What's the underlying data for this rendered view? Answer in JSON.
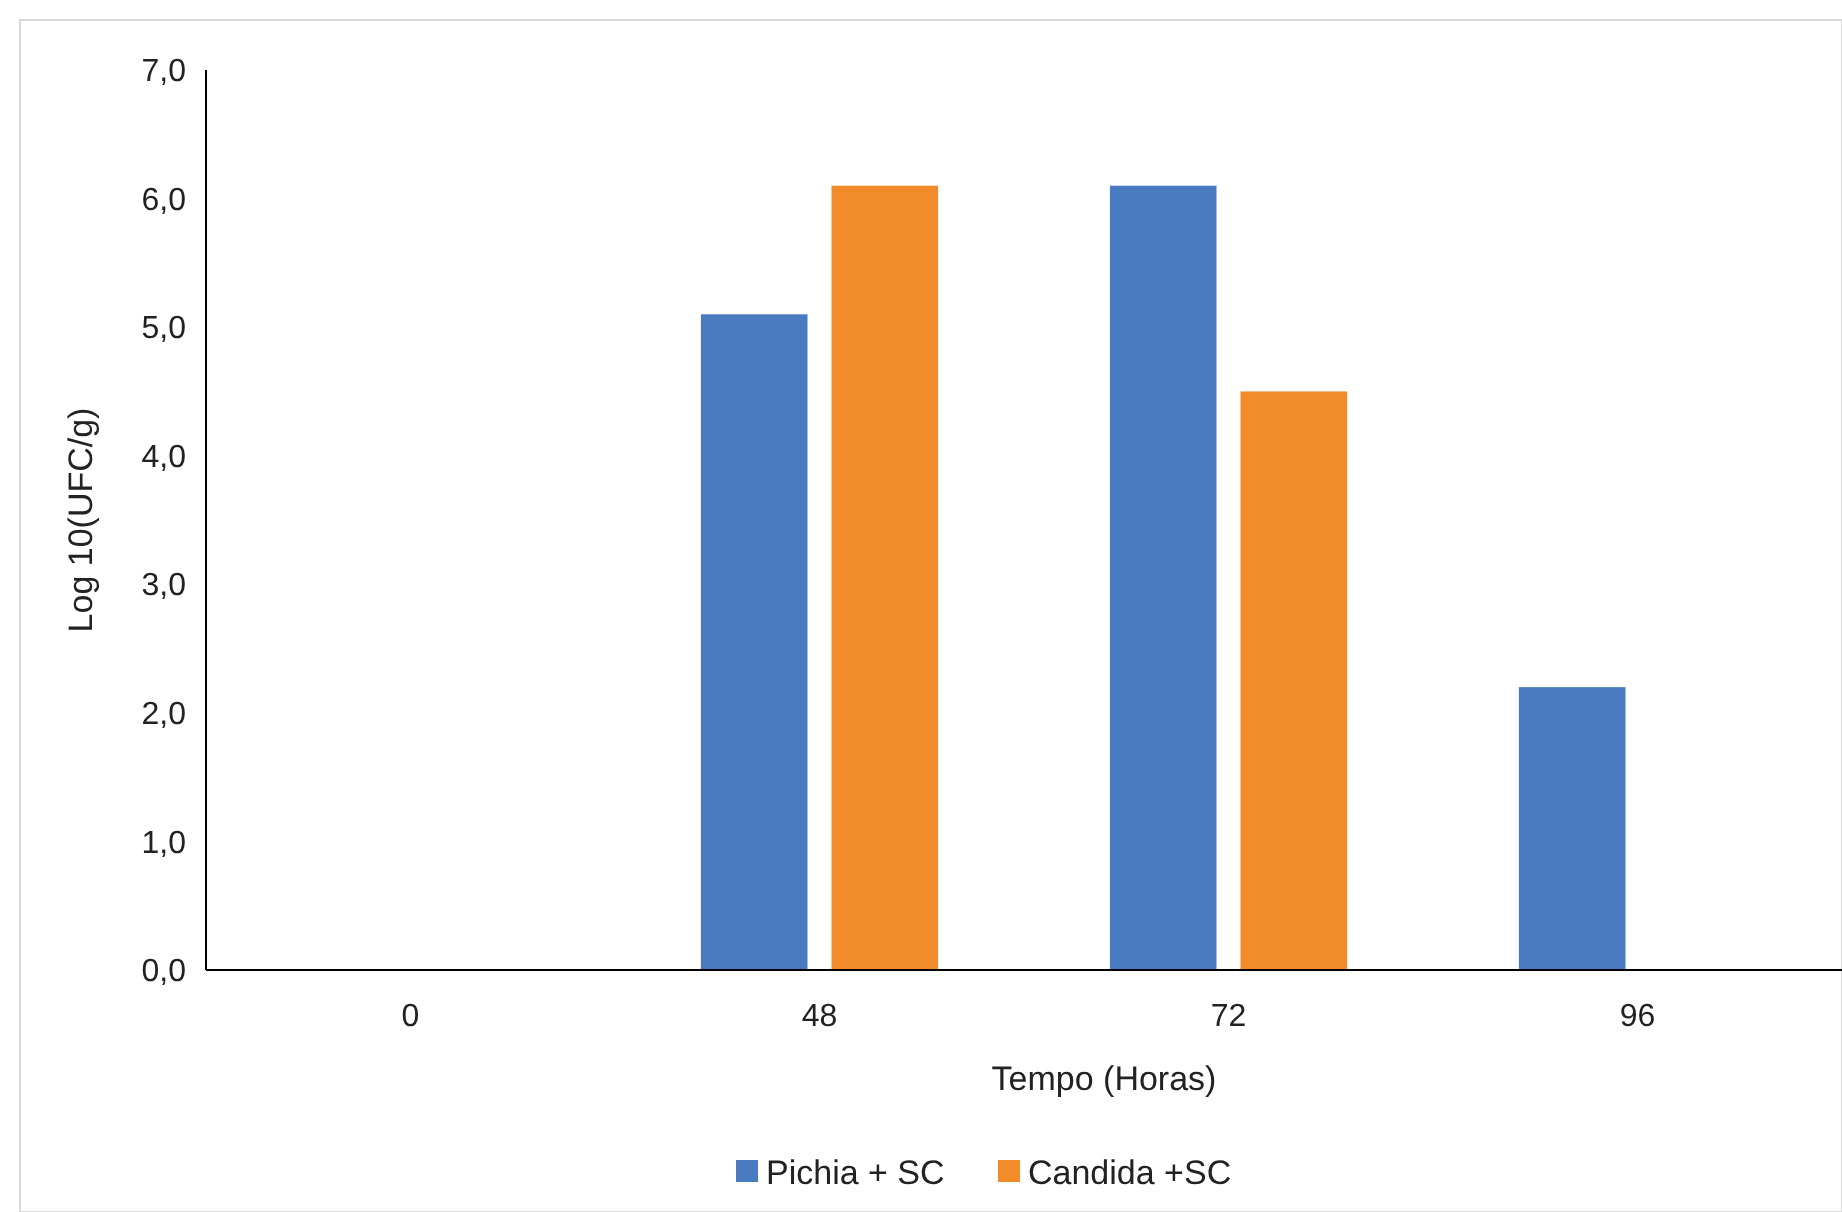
{
  "chart_data": {
    "type": "bar",
    "xlabel": "Tempo (Horas)",
    "ylabel": "Log 10(UFC/g)",
    "categories": [
      "0",
      "48",
      "72",
      "96"
    ],
    "series": [
      {
        "name": "Pichia + SC",
        "color": "#4a7bc0",
        "values": [
          0,
          5.1,
          6.1,
          2.2
        ]
      },
      {
        "name": "Candida +SC",
        "color": "#f28c2a",
        "values": [
          0,
          6.1,
          4.5,
          0
        ]
      }
    ],
    "ylim": [
      0,
      7
    ],
    "yticks": [
      {
        "value": 0,
        "label": "0,0"
      },
      {
        "value": 1,
        "label": "1,0"
      },
      {
        "value": 2,
        "label": "2,0"
      },
      {
        "value": 3,
        "label": "3,0"
      },
      {
        "value": 4,
        "label": "4,0"
      },
      {
        "value": 5,
        "label": "5,0"
      },
      {
        "value": 6,
        "label": "6,0"
      },
      {
        "value": 7,
        "label": "7,0"
      }
    ],
    "grid": false,
    "legend": "bottom"
  }
}
